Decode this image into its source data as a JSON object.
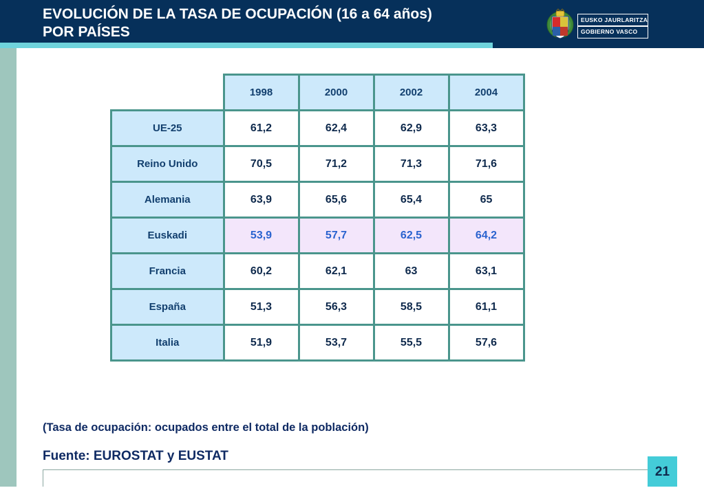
{
  "slide": {
    "title_line1": "EVOLUCIÓN DE LA TASA DE OCUPACIÓN (16 a 64 años)",
    "title_line2": "POR PAÍSES",
    "logo": {
      "line1": "EUSKO JAURLARITZA",
      "line2": "GOBIERNO VASCO",
      "icon": "coat-of-arms-icon"
    },
    "note": "(Tasa de ocupación: ocupados entre el total de la población)",
    "source": "Fuente: EUROSTAT y EUSTAT",
    "page_number": "21"
  },
  "table": {
    "columns": [
      "1998",
      "2000",
      "2002",
      "2004"
    ],
    "rows": [
      {
        "country": "UE-25",
        "values": [
          "61,2",
          "62,4",
          "62,9",
          "63,3"
        ]
      },
      {
        "country": "Reino Unido",
        "values": [
          "70,5",
          "71,2",
          "71,3",
          "71,6"
        ]
      },
      {
        "country": "Alemania",
        "values": [
          "63,9",
          "65,6",
          "65,4",
          "65"
        ]
      },
      {
        "country": "Euskadi",
        "values": [
          "53,9",
          "57,7",
          "62,5",
          "64,2"
        ],
        "highlighted": true
      },
      {
        "country": "Francia",
        "values": [
          "60,2",
          "62,1",
          "63",
          "63,1"
        ]
      },
      {
        "country": "España",
        "values": [
          "51,3",
          "56,3",
          "58,5",
          "61,1"
        ]
      },
      {
        "country": "Italia",
        "values": [
          "51,9",
          "53,7",
          "55,5",
          "57,6"
        ]
      }
    ]
  },
  "colors": {
    "header_bg": "#06305a",
    "accent_cyan": "#6fd3dc",
    "left_bar": "#9ec6bd",
    "table_border": "#4a958c",
    "header_cell_bg": "#cde9fb",
    "highlight_row_bg": "#f3e6fb",
    "highlight_text": "#2a63cf",
    "page_number_bg": "#44ccd8"
  }
}
